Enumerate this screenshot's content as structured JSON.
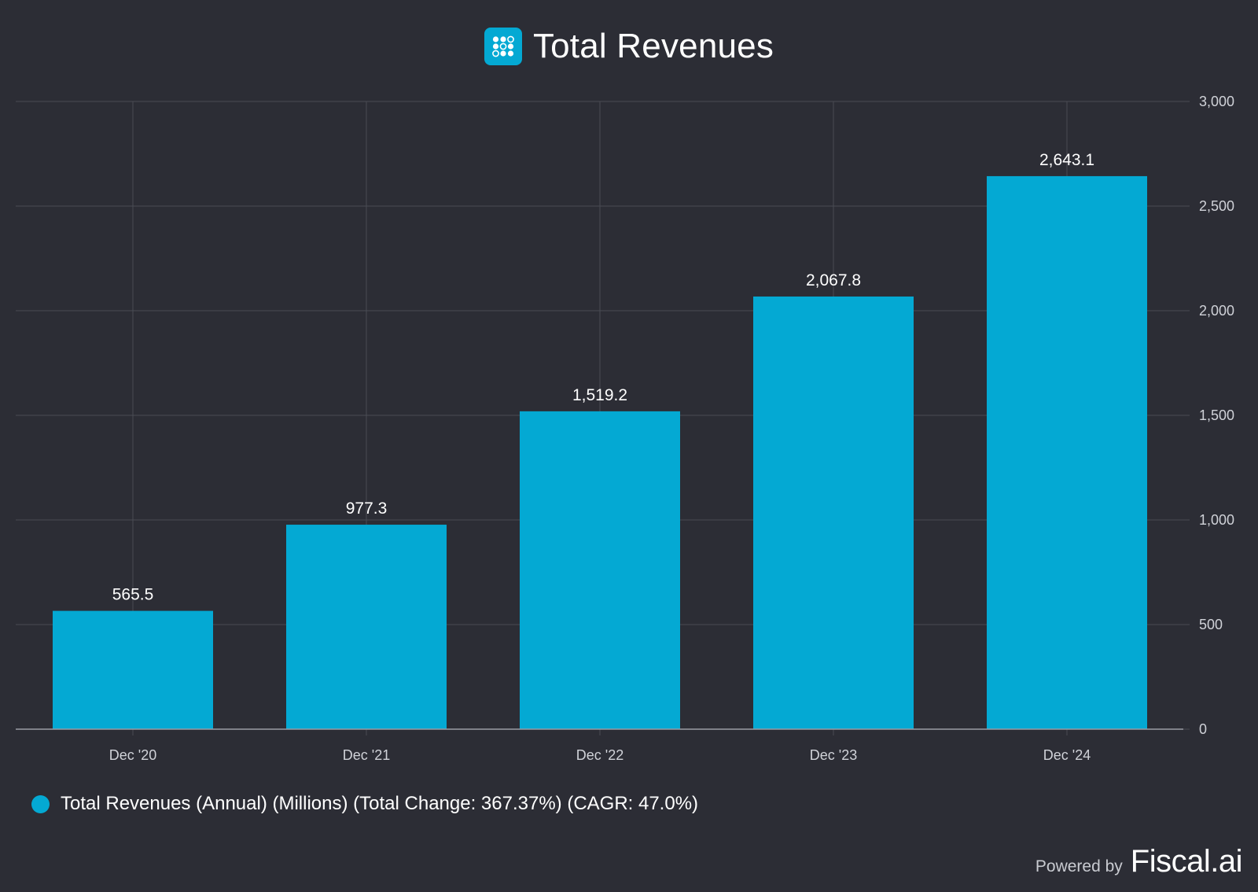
{
  "title": "Total Revenues",
  "colors": {
    "background": "#2c2d35",
    "bar": "#04a9d3",
    "grid": "#4a4b54",
    "axis_text": "#d0d2d8",
    "text": "#ffffff"
  },
  "icons": {
    "title_logo": "fiscal-logo-icon"
  },
  "legend": {
    "label": "Total Revenues (Annual) (Millions) (Total Change: 367.37%) (CAGR: 47.0%)"
  },
  "footer": {
    "powered_by": "Powered by",
    "brand": "Fiscal.ai"
  },
  "chart_data": {
    "type": "bar",
    "title": "Total Revenues",
    "categories": [
      "Dec '20",
      "Dec '21",
      "Dec '22",
      "Dec '23",
      "Dec '24"
    ],
    "series": [
      {
        "name": "Total Revenues (Annual) (Millions) (Total Change: 367.37%) (CAGR: 47.0%)",
        "values": [
          565.5,
          977.3,
          1519.2,
          2067.8,
          2643.1
        ],
        "labels": [
          "565.5",
          "977.3",
          "1,519.2",
          "2,067.8",
          "2,643.1"
        ]
      }
    ],
    "ylim": [
      0,
      3000
    ],
    "yticks": [
      0,
      500,
      1000,
      1500,
      2000,
      2500,
      3000
    ],
    "ytick_labels": [
      "0",
      "500",
      "1,000",
      "1,500",
      "2,000",
      "2,500",
      "3,000"
    ],
    "y_axis_side": "right",
    "grid": true,
    "legend_position": "bottom-left"
  }
}
